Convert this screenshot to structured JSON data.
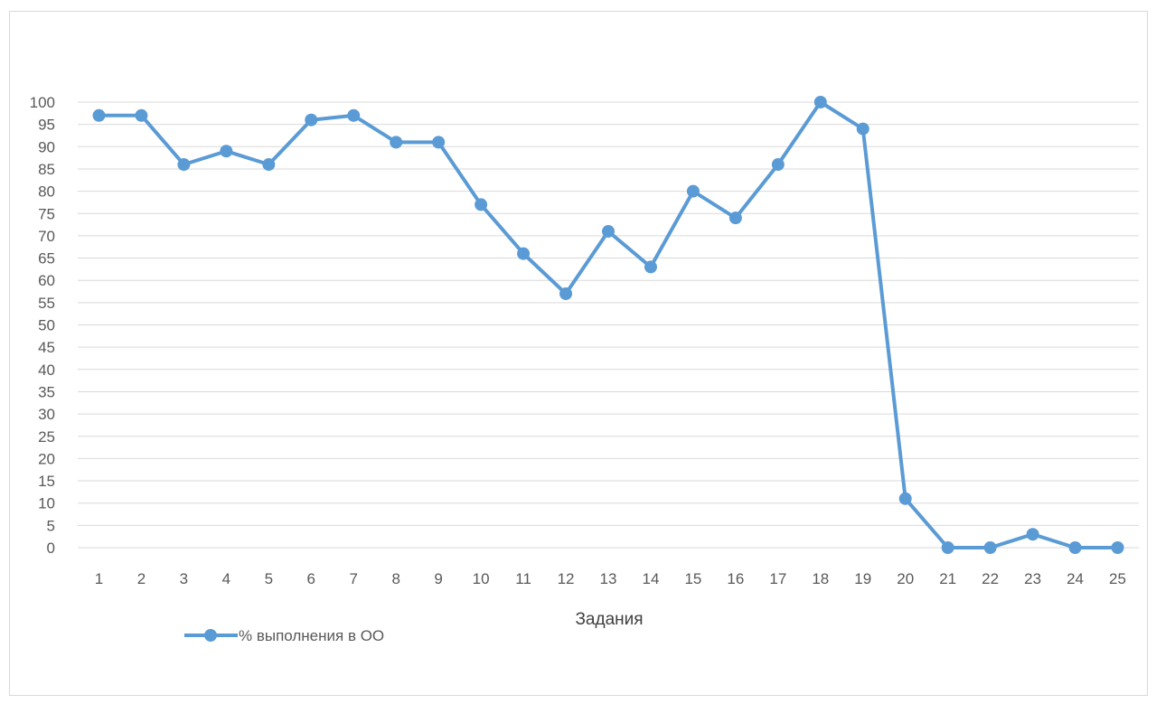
{
  "chart_data": {
    "type": "line",
    "title": "",
    "xlabel": "Задания",
    "ylabel": "",
    "categories": [
      "1",
      "2",
      "3",
      "4",
      "5",
      "6",
      "7",
      "8",
      "9",
      "10",
      "11",
      "12",
      "13",
      "14",
      "15",
      "16",
      "17",
      "18",
      "19",
      "20",
      "21",
      "22",
      "23",
      "24",
      "25"
    ],
    "series": [
      {
        "name": "% выполнения в ОО",
        "values": [
          97,
          97,
          86,
          89,
          86,
          96,
          97,
          91,
          91,
          77,
          66,
          57,
          71,
          63,
          80,
          74,
          86,
          100,
          94,
          11,
          0,
          0,
          3,
          0,
          0
        ]
      }
    ],
    "ylim": [
      0,
      100
    ],
    "y_ticks": [
      0,
      5,
      10,
      15,
      20,
      25,
      30,
      35,
      40,
      45,
      50,
      55,
      60,
      65,
      70,
      75,
      80,
      85,
      90,
      95,
      100
    ],
    "grid": true,
    "legend_position": "bottom-left",
    "colors": {
      "series_line": "#5b9bd5",
      "gridline": "#d9d9d9",
      "tick_text": "#595959",
      "axis_title_text": "#404040"
    }
  }
}
